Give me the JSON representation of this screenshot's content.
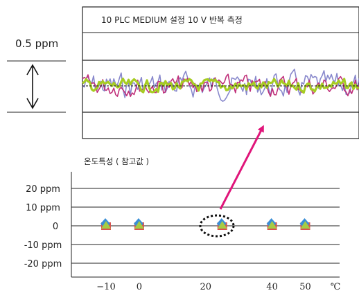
{
  "chart_data": [
    {
      "type": "line",
      "title": "10 PLC MEDIUM 설정  10 V 반복 측정",
      "scale_label": "0.5 ppm",
      "series": [
        {
          "color": "#c0307a"
        },
        {
          "color": "#8888cc"
        },
        {
          "color": "#a6cc22"
        }
      ]
    },
    {
      "type": "scatter",
      "title": "온도특성 ( 참고값 )",
      "xlabel": "",
      "ylabel": "",
      "x_ticks": [
        "-10",
        "0",
        "20",
        "40",
        "50"
      ],
      "x_unit": "℃",
      "y_ticks": [
        "20 ppm",
        "10 ppm",
        "0",
        "-10 ppm",
        "-20 ppm"
      ],
      "y_values": [
        20,
        10,
        0,
        -10,
        -20
      ],
      "ylim": [
        -25,
        25
      ],
      "x": [
        -10,
        0,
        25,
        40,
        50
      ],
      "y": [
        0,
        0,
        0,
        0,
        0
      ],
      "marker_colors": {
        "square": "#d9534f",
        "diamond": "#3a8ed6",
        "triangle": "#a6cc44"
      },
      "highlight_x": 25
    }
  ]
}
